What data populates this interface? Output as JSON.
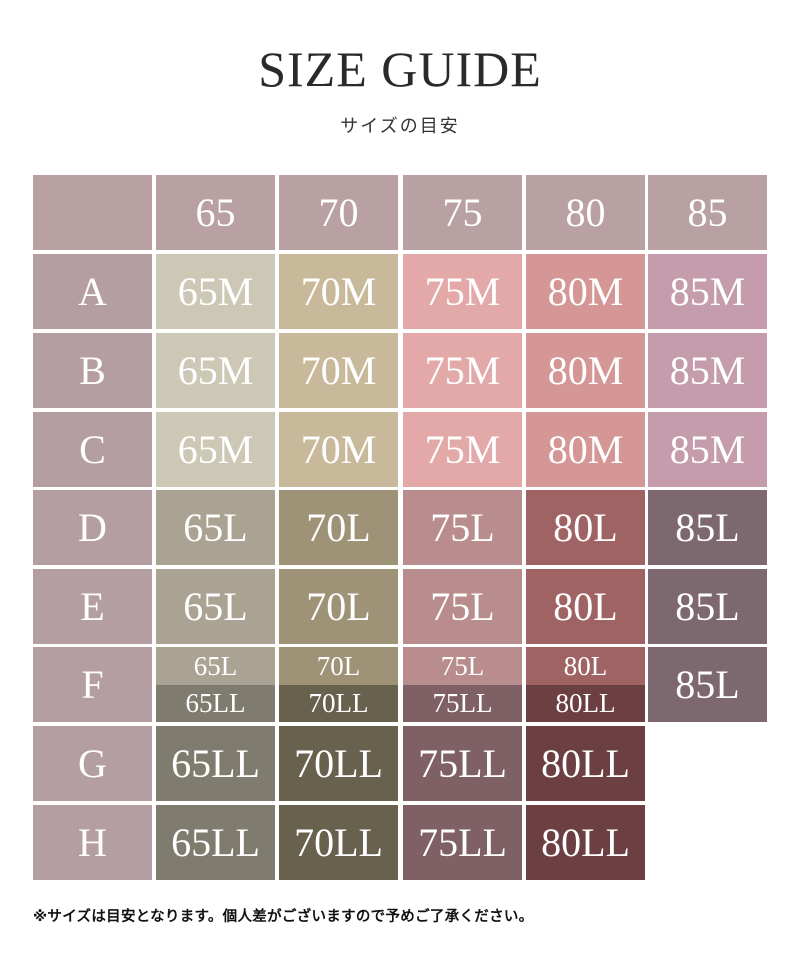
{
  "title": "SIZE GUIDE",
  "subtitle": "サイズの目安",
  "header": {
    "color": "#b8a0a3",
    "bands": [
      "65",
      "70",
      "75",
      "80",
      "85"
    ]
  },
  "row_label_color": "#b59ea1",
  "rows": [
    {
      "cup": "A",
      "cells": [
        {
          "label": "65M",
          "color": "#ccc8b5"
        },
        {
          "label": "70M",
          "color": "#c8b99a"
        },
        {
          "label": "75M",
          "color": "#e3a9a8"
        },
        {
          "label": "80M",
          "color": "#d49795"
        },
        {
          "label": "85M",
          "color": "#c49cac"
        }
      ]
    },
    {
      "cup": "B",
      "cells": [
        {
          "label": "65M",
          "color": "#ccc8b5"
        },
        {
          "label": "70M",
          "color": "#c8b99a"
        },
        {
          "label": "75M",
          "color": "#e3a9a8"
        },
        {
          "label": "80M",
          "color": "#d49795"
        },
        {
          "label": "85M",
          "color": "#c49cac"
        }
      ]
    },
    {
      "cup": "C",
      "cells": [
        {
          "label": "65M",
          "color": "#ccc8b5"
        },
        {
          "label": "70M",
          "color": "#c8b99a"
        },
        {
          "label": "75M",
          "color": "#e3a9a8"
        },
        {
          "label": "80M",
          "color": "#d49795"
        },
        {
          "label": "85M",
          "color": "#c49cac"
        }
      ]
    },
    {
      "cup": "D",
      "cells": [
        {
          "label": "65L",
          "color": "#aaa393"
        },
        {
          "label": "70L",
          "color": "#9e9277"
        },
        {
          "label": "75L",
          "color": "#b98c8d"
        },
        {
          "label": "80L",
          "color": "#a06363"
        },
        {
          "label": "85L",
          "color": "#7d6870"
        }
      ]
    },
    {
      "cup": "E",
      "cells": [
        {
          "label": "65L",
          "color": "#aaa393"
        },
        {
          "label": "70L",
          "color": "#9e9277"
        },
        {
          "label": "75L",
          "color": "#b98c8d"
        },
        {
          "label": "80L",
          "color": "#a06363"
        },
        {
          "label": "85L",
          "color": "#7d6870"
        }
      ]
    },
    {
      "cup": "F",
      "cells": [
        {
          "split": [
            {
              "label": "65L",
              "color": "#aaa393"
            },
            {
              "label": "65LL",
              "color": "#7f7b6e"
            }
          ]
        },
        {
          "split": [
            {
              "label": "70L",
              "color": "#9e9277"
            },
            {
              "label": "70LL",
              "color": "#68614d"
            }
          ]
        },
        {
          "split": [
            {
              "label": "75L",
              "color": "#b98c8d"
            },
            {
              "label": "75LL",
              "color": "#7f6165"
            }
          ]
        },
        {
          "split": [
            {
              "label": "80L",
              "color": "#a06363"
            },
            {
              "label": "80LL",
              "color": "#6c3f42"
            }
          ]
        },
        {
          "label": "85L",
          "color": "#7d6870"
        }
      ]
    },
    {
      "cup": "G",
      "cells": [
        {
          "label": "65LL",
          "color": "#7f7b6e"
        },
        {
          "label": "70LL",
          "color": "#68614d"
        },
        {
          "label": "75LL",
          "color": "#7f6165"
        },
        {
          "label": "80LL",
          "color": "#6c3f42"
        }
      ]
    },
    {
      "cup": "H",
      "cells": [
        {
          "label": "65LL",
          "color": "#7f7b6e"
        },
        {
          "label": "70LL",
          "color": "#68614d"
        },
        {
          "label": "75LL",
          "color": "#7f6165"
        },
        {
          "label": "80LL",
          "color": "#6c3f42"
        }
      ]
    }
  ],
  "note": "※サイズは目安となります。個人差がございますので予めご了承ください。"
}
